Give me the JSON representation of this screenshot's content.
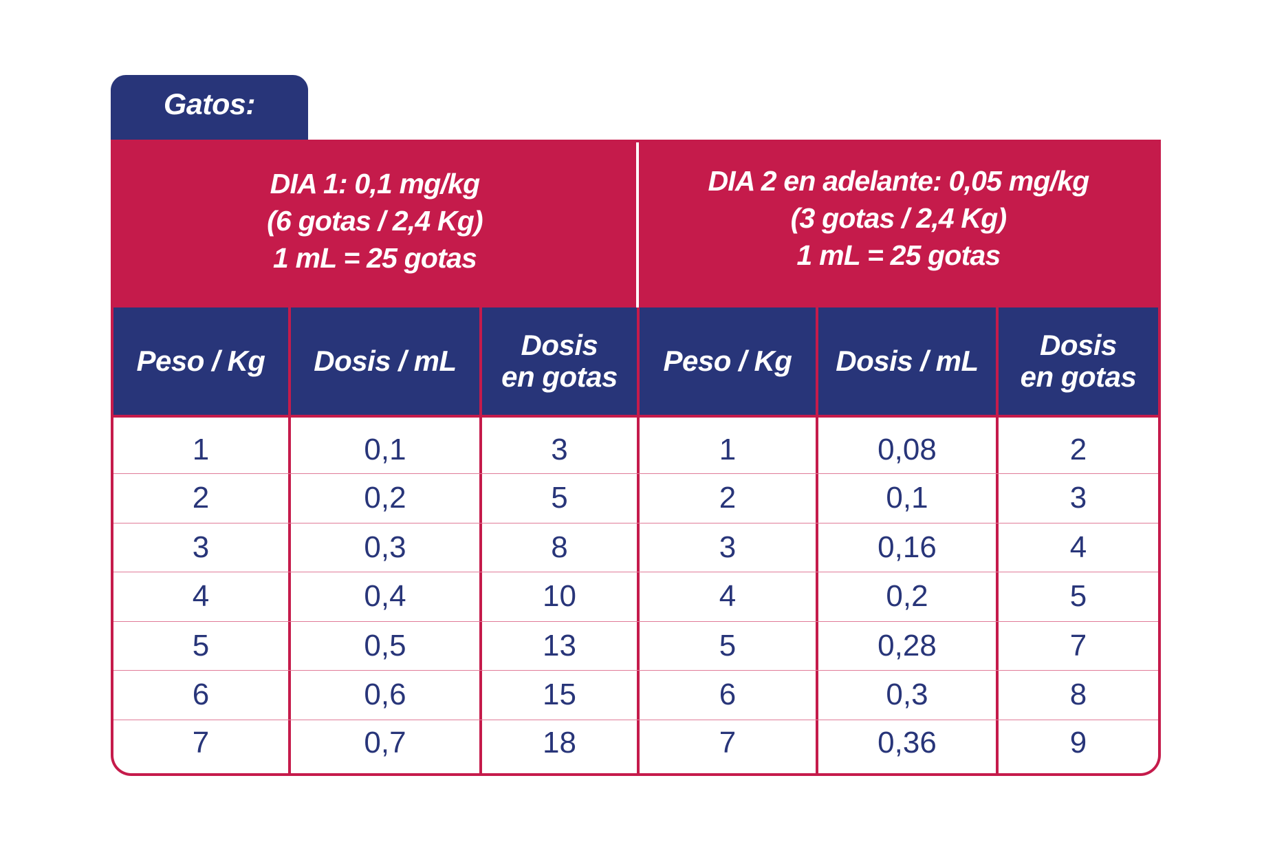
{
  "tab": {
    "label": "Gatos:"
  },
  "dose_headers": [
    {
      "line1": "DIA 1:  0,1 mg/kg",
      "line2": "(6 gotas / 2,4 Kg)",
      "line3": "1 mL = 25 gotas"
    },
    {
      "line1": "DIA 2 en adelante:  0,05 mg/kg",
      "line2": "(3 gotas / 2,4 Kg)",
      "line3": "1 mL = 25 gotas"
    }
  ],
  "columns": [
    {
      "line1": "Peso / Kg",
      "line2": ""
    },
    {
      "line1": "Dosis /  mL",
      "line2": ""
    },
    {
      "line1": "Dosis",
      "line2": "en gotas"
    },
    {
      "line1": "Peso / Kg",
      "line2": ""
    },
    {
      "line1": "Dosis / mL",
      "line2": ""
    },
    {
      "line1": "Dosis",
      "line2": "en gotas"
    }
  ],
  "rows": [
    [
      "1",
      "0,1",
      "3",
      "1",
      "0,08",
      "2"
    ],
    [
      "2",
      "0,2",
      "5",
      "2",
      "0,1",
      "3"
    ],
    [
      "3",
      "0,3",
      "8",
      "3",
      "0,16",
      "4"
    ],
    [
      "4",
      "0,4",
      "10",
      "4",
      "0,2",
      "5"
    ],
    [
      "5",
      "0,5",
      "13",
      "5",
      "0,28",
      "7"
    ],
    [
      "6",
      "0,6",
      "15",
      "6",
      "0,3",
      "8"
    ],
    [
      "7",
      "0,7",
      "18",
      "7",
      "0,36",
      "9"
    ]
  ],
  "colors": {
    "navy": "#283579",
    "crimson": "#c51b4b",
    "row_divider": "#e07a97",
    "background": "#ffffff"
  }
}
